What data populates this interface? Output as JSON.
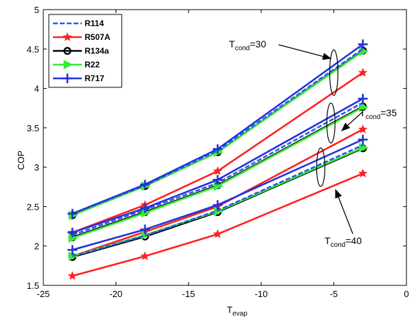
{
  "chart_data": {
    "type": "line",
    "title": "",
    "xlabel": "T",
    "xlabel_sub": "evap",
    "ylabel": "COP",
    "xlim": [
      -25,
      0
    ],
    "ylim": [
      1.5,
      5
    ],
    "xticks": [
      -25,
      -20,
      -15,
      -10,
      -5,
      0
    ],
    "yticks": [
      1.5,
      2,
      2.5,
      3,
      3.5,
      4,
      4.5,
      5
    ],
    "ytick_labels": [
      "1.5",
      "2",
      "2.5",
      "3",
      "3.5",
      "4",
      "4.5",
      "5"
    ],
    "grid": false,
    "legend_position": "top-left",
    "x": [
      -23,
      -18,
      -13,
      -3
    ],
    "series": [
      {
        "name": "R114",
        "color": "#3355ee",
        "dash": true,
        "marker": "none",
        "groups": [
          {
            "label": "30",
            "values": [
              2.41,
              2.77,
              3.21,
              4.5
            ]
          },
          {
            "label": "35",
            "values": [
              2.14,
              2.46,
              2.8,
              3.82
            ]
          },
          {
            "label": "40",
            "values": [
              1.87,
              2.13,
              2.45,
              3.28
            ]
          }
        ]
      },
      {
        "name": "R507A",
        "color": "#ff2020",
        "dash": false,
        "marker": "star",
        "groups": [
          {
            "label": "30",
            "values": [
              2.17,
              2.52,
              2.95,
              4.2
            ]
          },
          {
            "label": "35",
            "values": [
              1.87,
              2.18,
              2.5,
              3.48
            ]
          },
          {
            "label": "40",
            "values": [
              1.62,
              1.87,
              2.15,
              2.92
            ]
          }
        ]
      },
      {
        "name": "R134a",
        "color": "#000000",
        "dash": false,
        "marker": "circle",
        "groups": [
          {
            "label": "30",
            "values": [
              2.39,
              2.76,
              3.19,
              4.48
            ]
          },
          {
            "label": "35",
            "values": [
              2.11,
              2.43,
              2.77,
              3.77
            ]
          },
          {
            "label": "40",
            "values": [
              1.86,
              2.12,
              2.43,
              3.24
            ]
          }
        ]
      },
      {
        "name": "R22",
        "color": "#33ee33",
        "dash": false,
        "marker": "triangle",
        "groups": [
          {
            "label": "30",
            "values": [
              2.39,
              2.76,
              3.19,
              4.47
            ]
          },
          {
            "label": "35",
            "values": [
              2.1,
              2.42,
              2.76,
              3.76
            ]
          },
          {
            "label": "40",
            "values": [
              1.87,
              2.14,
              2.44,
              3.25
            ]
          }
        ]
      },
      {
        "name": "R717",
        "color": "#2233dd",
        "dash": false,
        "marker": "plus",
        "groups": [
          {
            "label": "30",
            "values": [
              2.41,
              2.78,
              3.23,
              4.56
            ]
          },
          {
            "label": "35",
            "values": [
              2.17,
              2.48,
              2.84,
              3.87
            ]
          },
          {
            "label": "40",
            "values": [
              1.95,
              2.21,
              2.52,
              3.35
            ]
          }
        ]
      }
    ],
    "annotations": [
      {
        "text_main": "T",
        "text_sub": "cond",
        "text_tail": "=30"
      },
      {
        "text_main": "T",
        "text_sub": "cond",
        "text_tail": "=35"
      },
      {
        "text_main": "T",
        "text_sub": "cond",
        "text_tail": "=40"
      }
    ]
  }
}
